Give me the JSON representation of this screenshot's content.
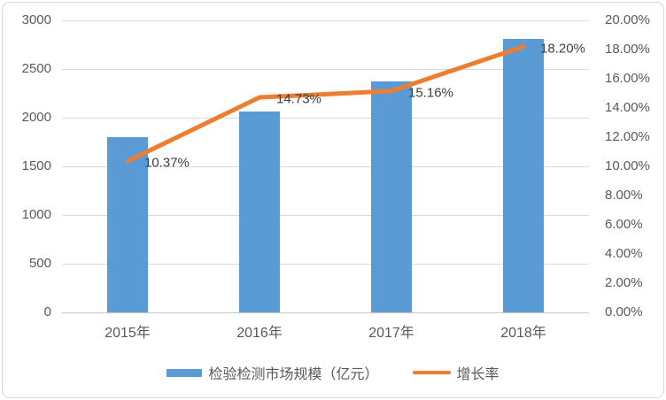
{
  "chart_data": {
    "type": "combo",
    "title": "",
    "categories": [
      "2015年",
      "2016年",
      "2017年",
      "2018年"
    ],
    "series": [
      {
        "name": "检验检测市场规模（亿元）",
        "type": "bar",
        "axis": "left",
        "values": [
          1800,
          2065,
          2377,
          2810
        ],
        "color": "#5b9bd5"
      },
      {
        "name": "增长率",
        "type": "line",
        "axis": "right",
        "values": [
          10.37,
          14.73,
          15.16,
          18.2
        ],
        "point_labels": [
          "10.37%",
          "14.73%",
          "15.16%",
          "18.20%"
        ],
        "color": "#ed7d31"
      }
    ],
    "left_axis": {
      "min": 0,
      "max": 3000,
      "step": 500,
      "tick_labels": [
        "3000",
        "2500",
        "2000",
        "1500",
        "1000",
        "500",
        "0"
      ]
    },
    "right_axis": {
      "min": 0,
      "max": 20,
      "step": 2,
      "tick_labels": [
        "20.00%",
        "18.00%",
        "16.00%",
        "14.00%",
        "12.00%",
        "10.00%",
        "8.00%",
        "6.00%",
        "4.00%",
        "2.00%",
        "0.00%"
      ]
    },
    "legend": {
      "position": "bottom",
      "items": [
        {
          "label": "检验检测市场规模（亿元）",
          "swatch": "bar",
          "color": "#5b9bd5"
        },
        {
          "label": "增长率",
          "swatch": "line",
          "color": "#ed7d31"
        }
      ]
    },
    "grid": true
  },
  "colors": {
    "bar": "#5b9bd5",
    "line": "#ed7d31",
    "grid": "#d9d9d9",
    "axis_line": "#c9c9c9",
    "tick_text": "#595959",
    "data_label_text": "#404040",
    "frame_border": "#d9d9d9",
    "background": "#ffffff"
  }
}
